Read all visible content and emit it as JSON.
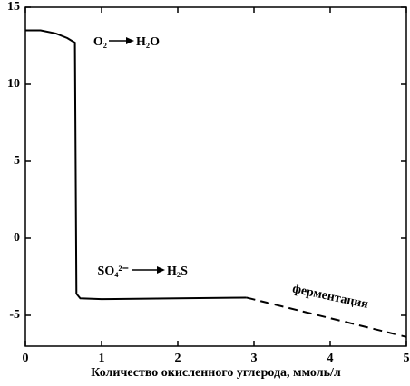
{
  "chart_data": {
    "type": "line",
    "xlabel": "Количество окисленного углерода, ммоль/л",
    "xlim": [
      0,
      5
    ],
    "xticks": [
      0,
      1,
      2,
      3,
      4,
      5
    ],
    "ylim": [
      -7,
      15
    ],
    "yticks": [
      -5,
      0,
      5,
      10,
      15
    ],
    "series": [
      {
        "color": "#000000",
        "style": "solid",
        "x": [
          0,
          0.2,
          0.4,
          0.55,
          0.65,
          0.67,
          0.72,
          1.0,
          2.0,
          2.9
        ],
        "values": [
          13.5,
          13.5,
          13.3,
          13.0,
          12.7,
          -3.6,
          -3.9,
          -3.95,
          -3.9,
          -3.85
        ]
      },
      {
        "color": "#000000",
        "style": "dashed",
        "x": [
          2.9,
          5
        ],
        "values": [
          -3.85,
          -6.4
        ]
      }
    ],
    "annotations": [
      {
        "reactant": "O₂",
        "product": "H₂O"
      },
      {
        "reactant": "SO₄²⁻",
        "product": "H₂S"
      },
      {
        "text": "ферментация"
      }
    ]
  }
}
